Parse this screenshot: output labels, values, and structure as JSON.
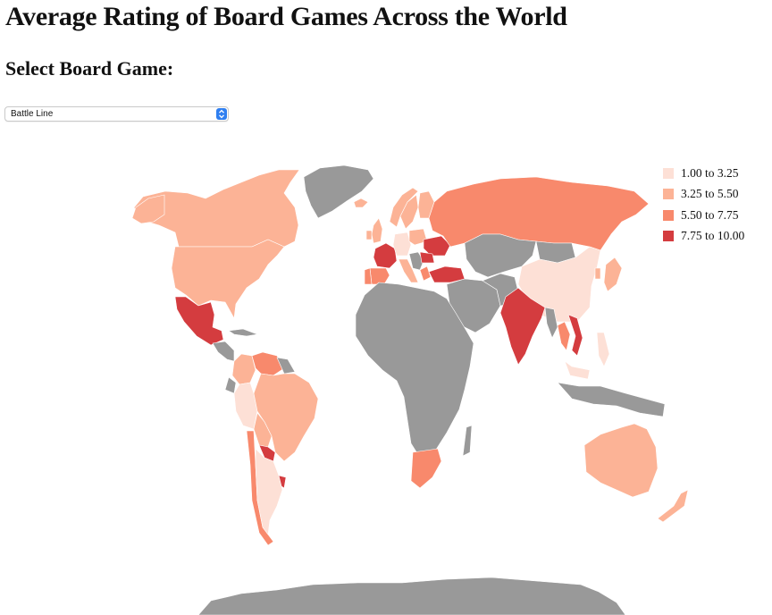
{
  "page": {
    "title": "Average Rating of Board Games Across the World",
    "select_heading": "Select Board Game:"
  },
  "game_select": {
    "selected": "Battle Line"
  },
  "legend": {
    "items": [
      {
        "label": "1.00 to 3.25",
        "color": "#fde0d6"
      },
      {
        "label": "3.25 to 5.50",
        "color": "#fcb396"
      },
      {
        "label": "5.50 to 7.75",
        "color": "#f8896c"
      },
      {
        "label": "7.75 to 10.00",
        "color": "#d43c3f"
      }
    ]
  },
  "map_data": {
    "no_data_color": "#999999",
    "countries": [
      {
        "name": "Canada",
        "bin": 2
      },
      {
        "name": "United States",
        "bin": 2
      },
      {
        "name": "Mexico",
        "bin": 4
      },
      {
        "name": "Venezuela",
        "bin": 3
      },
      {
        "name": "Colombia",
        "bin": 2
      },
      {
        "name": "Brazil",
        "bin": 2
      },
      {
        "name": "Peru",
        "bin": 1
      },
      {
        "name": "Bolivia",
        "bin": 2
      },
      {
        "name": "Paraguay",
        "bin": 4
      },
      {
        "name": "Uruguay",
        "bin": 4
      },
      {
        "name": "Chile",
        "bin": 3
      },
      {
        "name": "Argentina",
        "bin": 1
      },
      {
        "name": "Iceland",
        "bin": 2
      },
      {
        "name": "United Kingdom",
        "bin": 2
      },
      {
        "name": "Ireland",
        "bin": 2
      },
      {
        "name": "Norway",
        "bin": 2
      },
      {
        "name": "Sweden",
        "bin": 2
      },
      {
        "name": "Finland",
        "bin": 2
      },
      {
        "name": "France",
        "bin": 4
      },
      {
        "name": "Spain",
        "bin": 3
      },
      {
        "name": "Portugal",
        "bin": 3
      },
      {
        "name": "Germany",
        "bin": 1
      },
      {
        "name": "Poland",
        "bin": 2
      },
      {
        "name": "Italy",
        "bin": 2
      },
      {
        "name": "Ukraine",
        "bin": 4
      },
      {
        "name": "Romania",
        "bin": 4
      },
      {
        "name": "Greece",
        "bin": 3
      },
      {
        "name": "Turkey",
        "bin": 4
      },
      {
        "name": "Russia",
        "bin": 3
      },
      {
        "name": "China",
        "bin": 1
      },
      {
        "name": "Japan",
        "bin": 2
      },
      {
        "name": "South Korea",
        "bin": 2
      },
      {
        "name": "India",
        "bin": 4
      },
      {
        "name": "Thailand",
        "bin": 3
      },
      {
        "name": "Vietnam",
        "bin": 4
      },
      {
        "name": "Philippines",
        "bin": 1
      },
      {
        "name": "Malaysia",
        "bin": 1
      },
      {
        "name": "Australia",
        "bin": 2
      },
      {
        "name": "New Zealand",
        "bin": 2
      },
      {
        "name": "South Africa",
        "bin": 3
      }
    ]
  }
}
